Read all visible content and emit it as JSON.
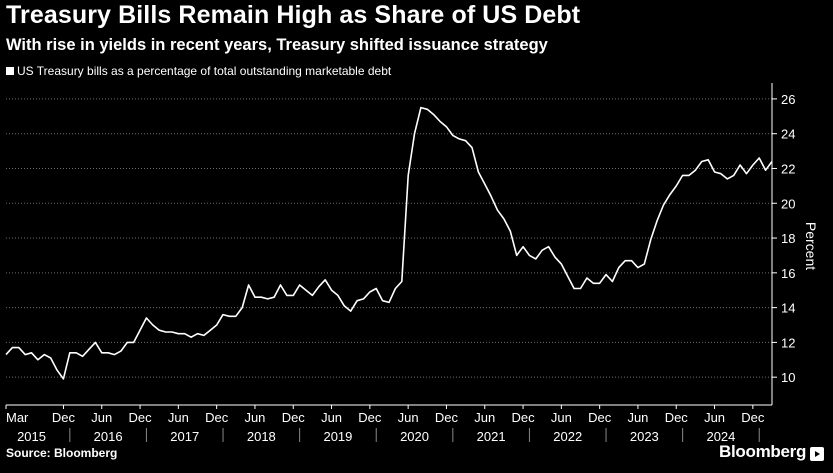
{
  "header": {
    "title": "Treasury Bills Remain High as Share of US Debt",
    "subtitle": "With rise in yields in recent years, Treasury shifted issuance strategy"
  },
  "footer": {
    "source": "Source: Bloomberg",
    "brand": "Bloomberg"
  },
  "colors": {
    "background": "#000000",
    "line": "#ffffff",
    "grid": "#6b6b6b"
  },
  "chart_data": {
    "type": "line",
    "title": "Treasury Bills Remain High as Share of US Debt",
    "subtitle": "With rise in yields in recent years, Treasury shifted issuance strategy",
    "ylabel": "Percent",
    "y_axis_side": "right",
    "ylim": [
      8.4,
      26.8
    ],
    "yticks": [
      10,
      12,
      14,
      16,
      18,
      20,
      22,
      24,
      26
    ],
    "xlim": [
      "2015-03",
      "2025-03"
    ],
    "grid": "horizontal dotted",
    "legend_position": "top-left",
    "month_ticks": [
      {
        "date": "2015-03",
        "label": "Mar"
      },
      {
        "date": "2015-12",
        "label": "Dec"
      },
      {
        "date": "2016-06",
        "label": "Jun"
      },
      {
        "date": "2016-12",
        "label": "Dec"
      },
      {
        "date": "2017-06",
        "label": "Jun"
      },
      {
        "date": "2017-12",
        "label": "Dec"
      },
      {
        "date": "2018-06",
        "label": "Jun"
      },
      {
        "date": "2018-12",
        "label": "Dec"
      },
      {
        "date": "2019-06",
        "label": "Jun"
      },
      {
        "date": "2019-12",
        "label": "Dec"
      },
      {
        "date": "2020-06",
        "label": "Jun"
      },
      {
        "date": "2020-12",
        "label": "Dec"
      },
      {
        "date": "2021-06",
        "label": "Jun"
      },
      {
        "date": "2021-12",
        "label": "Dec"
      },
      {
        "date": "2022-06",
        "label": "Jun"
      },
      {
        "date": "2022-12",
        "label": "Dec"
      },
      {
        "date": "2023-06",
        "label": "Jun"
      },
      {
        "date": "2023-12",
        "label": "Dec"
      },
      {
        "date": "2024-06",
        "label": "Jun"
      },
      {
        "date": "2024-12",
        "label": "Dec"
      }
    ],
    "year_ticks": [
      {
        "date": "2015-07",
        "label": "2015"
      },
      {
        "date": "2016-07",
        "label": "2016"
      },
      {
        "date": "2017-07",
        "label": "2017"
      },
      {
        "date": "2018-07",
        "label": "2018"
      },
      {
        "date": "2019-07",
        "label": "2019"
      },
      {
        "date": "2020-07",
        "label": "2020"
      },
      {
        "date": "2021-07",
        "label": "2021"
      },
      {
        "date": "2022-07",
        "label": "2022"
      },
      {
        "date": "2023-07",
        "label": "2023"
      },
      {
        "date": "2024-07",
        "label": "2024"
      }
    ],
    "series": [
      {
        "name": "US Treasury bills as a percentage of total outstanding marketable debt",
        "points": [
          [
            "2015-03",
            11.3
          ],
          [
            "2015-04",
            11.7
          ],
          [
            "2015-05",
            11.7
          ],
          [
            "2015-06",
            11.3
          ],
          [
            "2015-07",
            11.4
          ],
          [
            "2015-08",
            11.0
          ],
          [
            "2015-09",
            11.3
          ],
          [
            "2015-10",
            11.1
          ],
          [
            "2015-11",
            10.4
          ],
          [
            "2015-12",
            9.9
          ],
          [
            "2016-01",
            11.4
          ],
          [
            "2016-02",
            11.4
          ],
          [
            "2016-03",
            11.2
          ],
          [
            "2016-04",
            11.6
          ],
          [
            "2016-05",
            12.0
          ],
          [
            "2016-06",
            11.4
          ],
          [
            "2016-07",
            11.4
          ],
          [
            "2016-08",
            11.3
          ],
          [
            "2016-09",
            11.5
          ],
          [
            "2016-10",
            12.0
          ],
          [
            "2016-11",
            12.0
          ],
          [
            "2016-12",
            12.7
          ],
          [
            "2017-01",
            13.4
          ],
          [
            "2017-02",
            13.0
          ],
          [
            "2017-03",
            12.7
          ],
          [
            "2017-04",
            12.6
          ],
          [
            "2017-05",
            12.6
          ],
          [
            "2017-06",
            12.5
          ],
          [
            "2017-07",
            12.5
          ],
          [
            "2017-08",
            12.3
          ],
          [
            "2017-09",
            12.5
          ],
          [
            "2017-10",
            12.4
          ],
          [
            "2017-11",
            12.7
          ],
          [
            "2017-12",
            13.0
          ],
          [
            "2018-01",
            13.6
          ],
          [
            "2018-02",
            13.5
          ],
          [
            "2018-03",
            13.5
          ],
          [
            "2018-04",
            14.0
          ],
          [
            "2018-05",
            15.3
          ],
          [
            "2018-06",
            14.6
          ],
          [
            "2018-07",
            14.6
          ],
          [
            "2018-08",
            14.5
          ],
          [
            "2018-09",
            14.6
          ],
          [
            "2018-10",
            15.3
          ],
          [
            "2018-11",
            14.7
          ],
          [
            "2018-12",
            14.7
          ],
          [
            "2019-01",
            15.3
          ],
          [
            "2019-02",
            15.0
          ],
          [
            "2019-03",
            14.7
          ],
          [
            "2019-04",
            15.2
          ],
          [
            "2019-05",
            15.6
          ],
          [
            "2019-06",
            15.0
          ],
          [
            "2019-07",
            14.7
          ],
          [
            "2019-08",
            14.1
          ],
          [
            "2019-09",
            13.8
          ],
          [
            "2019-10",
            14.4
          ],
          [
            "2019-11",
            14.5
          ],
          [
            "2019-12",
            14.9
          ],
          [
            "2020-01",
            15.1
          ],
          [
            "2020-02",
            14.4
          ],
          [
            "2020-03",
            14.3
          ],
          [
            "2020-04",
            15.1
          ],
          [
            "2020-05",
            15.5
          ],
          [
            "2020-06",
            21.6
          ],
          [
            "2020-07",
            24.0
          ],
          [
            "2020-08",
            25.5
          ],
          [
            "2020-09",
            25.4
          ],
          [
            "2020-10",
            25.1
          ],
          [
            "2020-11",
            24.7
          ],
          [
            "2020-12",
            24.4
          ],
          [
            "2021-01",
            23.9
          ],
          [
            "2021-02",
            23.7
          ],
          [
            "2021-03",
            23.6
          ],
          [
            "2021-04",
            23.2
          ],
          [
            "2021-05",
            21.8
          ],
          [
            "2021-06",
            21.1
          ],
          [
            "2021-07",
            20.4
          ],
          [
            "2021-08",
            19.6
          ],
          [
            "2021-09",
            19.1
          ],
          [
            "2021-10",
            18.4
          ],
          [
            "2021-11",
            17.0
          ],
          [
            "2021-12",
            17.5
          ],
          [
            "2022-01",
            17.0
          ],
          [
            "2022-02",
            16.8
          ],
          [
            "2022-03",
            17.3
          ],
          [
            "2022-04",
            17.5
          ],
          [
            "2022-05",
            16.9
          ],
          [
            "2022-06",
            16.5
          ],
          [
            "2022-07",
            15.8
          ],
          [
            "2022-08",
            15.1
          ],
          [
            "2022-09",
            15.1
          ],
          [
            "2022-10",
            15.7
          ],
          [
            "2022-11",
            15.4
          ],
          [
            "2022-12",
            15.4
          ],
          [
            "2023-01",
            15.9
          ],
          [
            "2023-02",
            15.5
          ],
          [
            "2023-03",
            16.3
          ],
          [
            "2023-04",
            16.7
          ],
          [
            "2023-05",
            16.7
          ],
          [
            "2023-06",
            16.3
          ],
          [
            "2023-07",
            16.5
          ],
          [
            "2023-08",
            17.9
          ],
          [
            "2023-09",
            19.0
          ],
          [
            "2023-10",
            19.9
          ],
          [
            "2023-11",
            20.5
          ],
          [
            "2023-12",
            21.0
          ],
          [
            "2024-01",
            21.6
          ],
          [
            "2024-02",
            21.6
          ],
          [
            "2024-03",
            21.9
          ],
          [
            "2024-04",
            22.4
          ],
          [
            "2024-05",
            22.5
          ],
          [
            "2024-06",
            21.8
          ],
          [
            "2024-07",
            21.7
          ],
          [
            "2024-08",
            21.4
          ],
          [
            "2024-09",
            21.6
          ],
          [
            "2024-10",
            22.2
          ],
          [
            "2024-11",
            21.7
          ],
          [
            "2024-12",
            22.2
          ],
          [
            "2025-01",
            22.6
          ],
          [
            "2025-02",
            21.9
          ],
          [
            "2025-03",
            22.4
          ]
        ]
      }
    ]
  }
}
